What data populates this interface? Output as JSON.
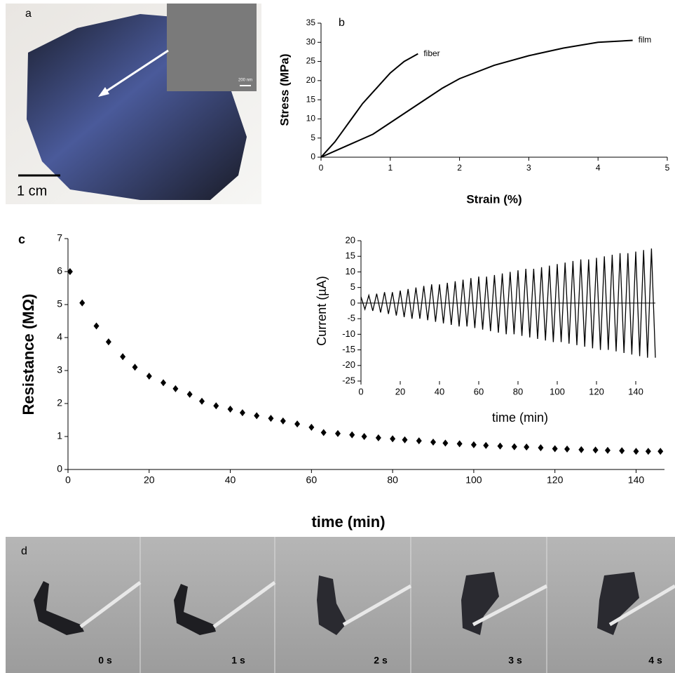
{
  "panels": {
    "a": {
      "label": "a",
      "scale_bar": "1 cm",
      "inset_scale": "200 nm"
    },
    "b": {
      "label": "b"
    },
    "c": {
      "label": "c"
    },
    "d": {
      "label": "d",
      "frames": [
        "0 s",
        "1 s",
        "2 s",
        "3 s",
        "4 s"
      ]
    }
  },
  "chart_data": [
    {
      "type": "line",
      "xlabel": "Strain (%)",
      "ylabel": "Stress (MPa)",
      "xlim": [
        0,
        5
      ],
      "xticks": [
        0,
        1,
        2,
        3,
        4,
        5
      ],
      "ylim": [
        0,
        35
      ],
      "yticks": [
        0,
        5,
        10,
        15,
        20,
        25,
        30,
        35
      ],
      "grid": false,
      "series": [
        {
          "name": "fiber",
          "color": "#000000",
          "x": [
            0,
            0.1,
            0.2,
            0.3,
            0.4,
            0.5,
            0.6,
            0.7,
            0.8,
            0.9,
            1.0,
            1.1,
            1.2,
            1.3,
            1.4
          ],
          "values": [
            0,
            2,
            4,
            6.5,
            9,
            11.5,
            14,
            16,
            18,
            20,
            22,
            23.5,
            25,
            26,
            27
          ]
        },
        {
          "name": "film",
          "color": "#000000",
          "x": [
            0,
            0.25,
            0.5,
            0.75,
            1,
            1.25,
            1.5,
            1.75,
            2,
            2.5,
            3,
            3.5,
            4,
            4.5
          ],
          "values": [
            0,
            2,
            4,
            6,
            9,
            12,
            15,
            18,
            20.5,
            24,
            26.5,
            28.5,
            30,
            30.5
          ]
        }
      ]
    },
    {
      "type": "scatter",
      "xlabel": "time (min)",
      "ylabel": "Resistance (MΩ)",
      "xlim": [
        0,
        147
      ],
      "xticks": [
        0,
        20,
        40,
        60,
        80,
        100,
        120,
        140
      ],
      "ylim": [
        0,
        7
      ],
      "yticks": [
        0,
        1,
        2,
        3,
        4,
        5,
        6,
        7
      ],
      "grid": false,
      "color": "#000000",
      "x": [
        0.5,
        3.5,
        7,
        10,
        13.5,
        16.5,
        20,
        23.5,
        26.5,
        30,
        33,
        36.5,
        40,
        43,
        46.5,
        50,
        53,
        56.5,
        60,
        63,
        66.5,
        70,
        73,
        76.5,
        80,
        83,
        86.5,
        90,
        93,
        96.5,
        100,
        103,
        106.5,
        110,
        113,
        116.5,
        120,
        123,
        126.5,
        130,
        133,
        136.5,
        140,
        143,
        146
      ],
      "values": [
        6.0,
        5.05,
        4.35,
        3.87,
        3.42,
        3.1,
        2.83,
        2.63,
        2.45,
        2.28,
        2.07,
        1.93,
        1.83,
        1.72,
        1.63,
        1.55,
        1.47,
        1.38,
        1.28,
        1.12,
        1.09,
        1.05,
        1.0,
        0.96,
        0.93,
        0.9,
        0.87,
        0.83,
        0.8,
        0.78,
        0.75,
        0.73,
        0.71,
        0.69,
        0.68,
        0.66,
        0.63,
        0.62,
        0.6,
        0.59,
        0.58,
        0.57,
        0.55,
        0.55,
        0.55
      ]
    },
    {
      "type": "line",
      "xlabel": "time (min)",
      "ylabel": "Current (µA)",
      "xlim": [
        0,
        150
      ],
      "xticks": [
        0,
        20,
        40,
        60,
        80,
        100,
        120,
        140
      ],
      "ylim": [
        -25,
        20
      ],
      "yticks": [
        -25,
        -20,
        -15,
        -10,
        -5,
        0,
        5,
        10,
        15,
        20
      ],
      "grid": false,
      "color": "#000000",
      "x": [
        0,
        2,
        4,
        6,
        8,
        10,
        12,
        14,
        16,
        18,
        20,
        22,
        24,
        26,
        28,
        30,
        32,
        34,
        36,
        38,
        40,
        42,
        44,
        46,
        48,
        50,
        52,
        54,
        56,
        58,
        60,
        62,
        64,
        66,
        68,
        70,
        72,
        74,
        76,
        78,
        80,
        82,
        84,
        86,
        88,
        90,
        92,
        94,
        96,
        98,
        100,
        102,
        104,
        106,
        108,
        110,
        112,
        114,
        116,
        118,
        120,
        122,
        124,
        126,
        128,
        130,
        132,
        134,
        136,
        138,
        140,
        142,
        144,
        146,
        148,
        150
      ],
      "values": [
        2,
        -2,
        2.5,
        -2.5,
        3,
        -3,
        3.5,
        -3.5,
        3.5,
        -4,
        4,
        -4.5,
        4.5,
        -5,
        5,
        -5,
        5.5,
        -5.5,
        6,
        -6,
        6,
        -6.5,
        6.5,
        -7,
        7,
        -7.5,
        7.5,
        -7.5,
        8,
        -8,
        8.5,
        -8.5,
        8.5,
        -9,
        9,
        -9.5,
        9.5,
        -10,
        10,
        -10,
        10.5,
        -10.5,
        11,
        -11,
        11,
        -11.5,
        11.5,
        -12,
        12,
        -12.5,
        12.5,
        -12.5,
        13,
        -13,
        13.5,
        -13.5,
        14,
        -14,
        14,
        -14.5,
        14.5,
        -15,
        15,
        -15,
        15.5,
        -15.5,
        16,
        -16,
        16,
        -16.5,
        16.5,
        -17,
        17,
        -17.5,
        17.5,
        -17.5
      ]
    }
  ]
}
